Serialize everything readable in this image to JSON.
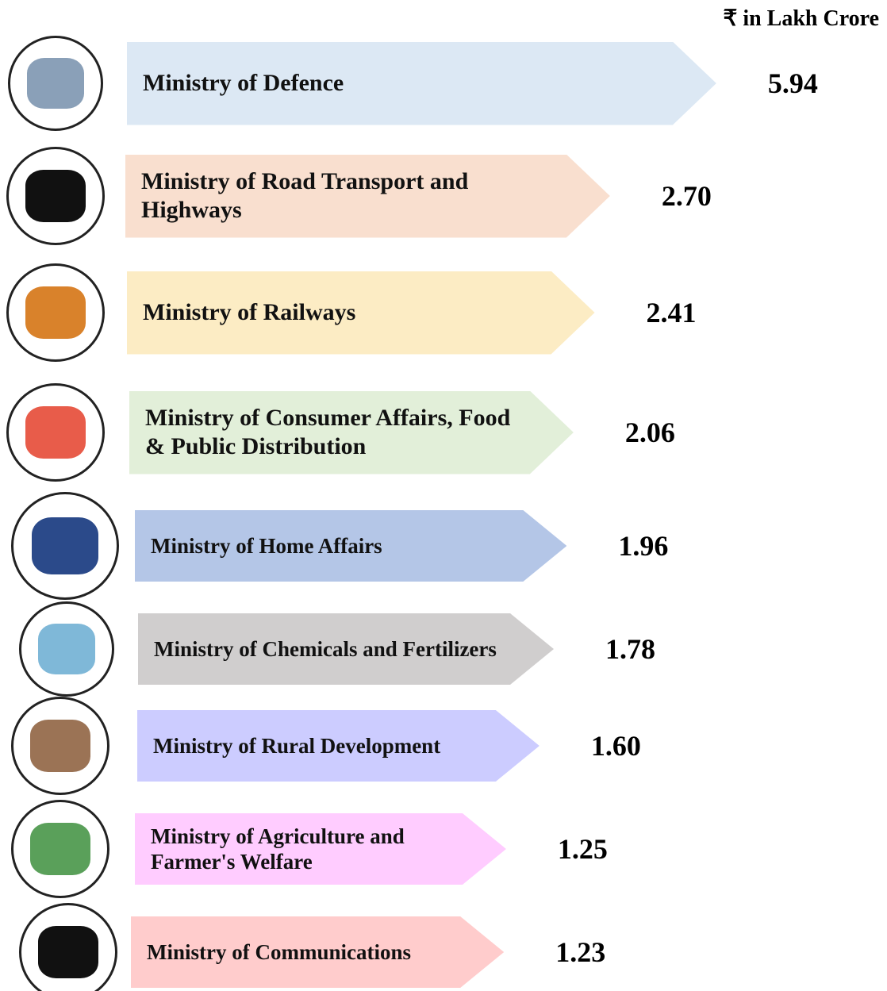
{
  "chart_data": {
    "type": "bar",
    "unit": "₹ in Lakh Crore",
    "categories": [
      "Ministry of Defence",
      "Ministry of Road Transport and Highways",
      "Ministry of Railways",
      "Ministry of Consumer Affairs, Food & Public Distribution",
      "Ministry of Home Affairs",
      "Ministry of Chemicals and Fertilizers",
      "Ministry of Rural Development",
      "Ministry of Agriculture and Farmer's Welfare",
      "Ministry of Communications"
    ],
    "values": [
      5.94,
      2.7,
      2.41,
      2.06,
      1.96,
      1.78,
      1.6,
      1.25,
      1.23
    ],
    "value_labels": [
      "5.94",
      "2.70",
      "2.41",
      "2.06",
      "1.96",
      "1.78",
      "1.60",
      "1.25",
      "1.23"
    ],
    "colors": [
      "#dce8f4",
      "#f9dfcf",
      "#fcecc4",
      "#e2efd9",
      "#b4c6e7",
      "#d0cece",
      "#ccccff",
      "#ffccff",
      "#ffcccc"
    ]
  }
}
